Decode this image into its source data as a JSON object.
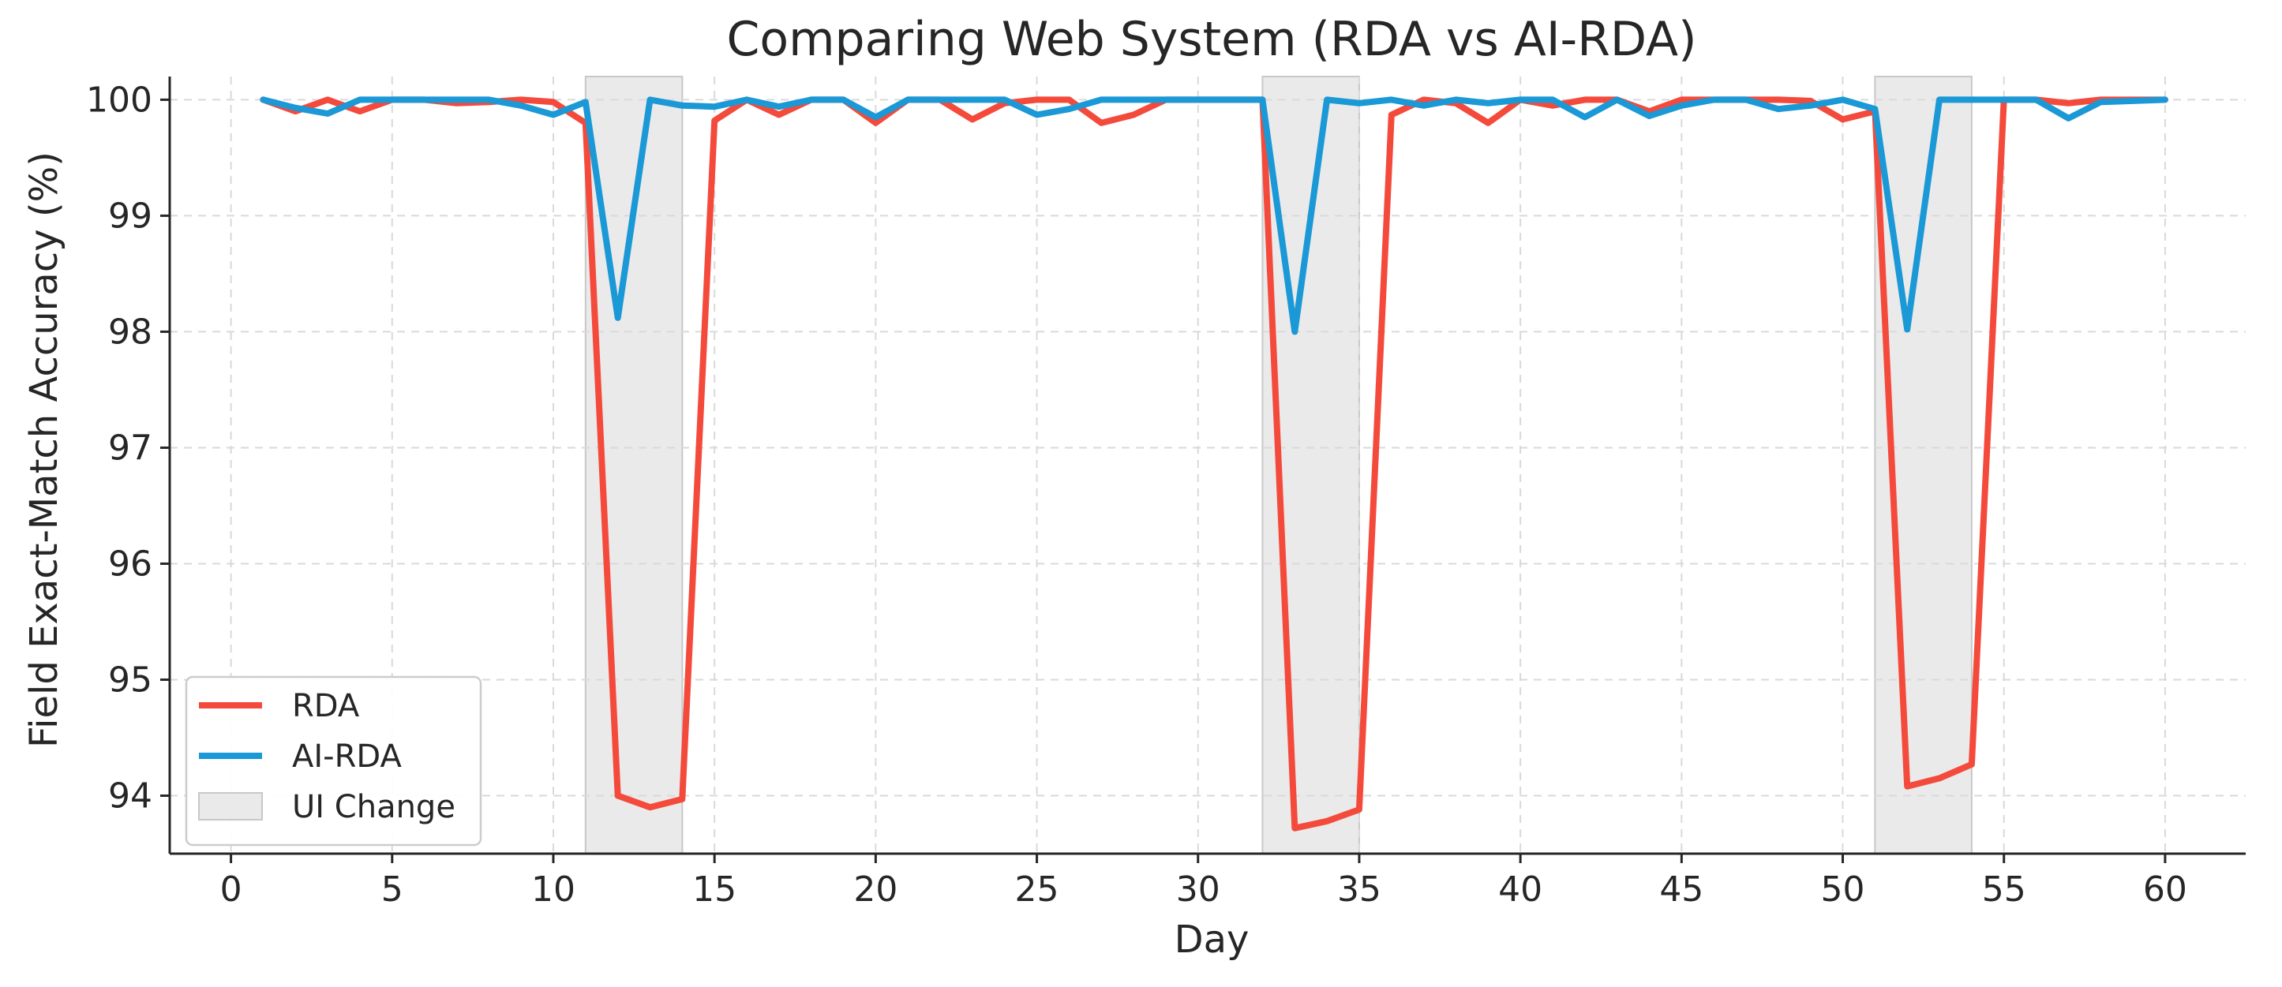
{
  "chart_data": {
    "type": "line",
    "title": "Comparing Web System (RDA vs AI-RDA)",
    "xlabel": "Day",
    "ylabel": "Field Exact-Match Accuracy (%)",
    "xlim": [
      -1.9,
      62.5
    ],
    "ylim": [
      93.5,
      100.2
    ],
    "xticks": [
      0,
      5,
      10,
      15,
      20,
      25,
      30,
      35,
      40,
      45,
      50,
      55,
      60
    ],
    "yticks": [
      94,
      95,
      96,
      97,
      98,
      99,
      100
    ],
    "grid": true,
    "legend_position": "lower-left",
    "x": [
      1,
      2,
      3,
      4,
      5,
      6,
      7,
      8,
      9,
      10,
      11,
      12,
      13,
      14,
      15,
      16,
      17,
      18,
      19,
      20,
      21,
      22,
      23,
      24,
      25,
      26,
      27,
      28,
      29,
      30,
      31,
      32,
      33,
      34,
      35,
      36,
      37,
      38,
      39,
      40,
      41,
      42,
      43,
      44,
      45,
      46,
      47,
      48,
      49,
      50,
      51,
      52,
      53,
      54,
      55,
      56,
      57,
      58,
      59,
      60
    ],
    "series": [
      {
        "name": "RDA",
        "color": "#f44a3c",
        "values": [
          100,
          99.9,
          100,
          99.9,
          100,
          100,
          99.97,
          99.98,
          100,
          99.98,
          99.8,
          94.0,
          93.9,
          93.97,
          99.82,
          100,
          99.87,
          100,
          100,
          99.8,
          100,
          100,
          99.83,
          99.97,
          100,
          100,
          99.8,
          99.87,
          100,
          100,
          100,
          100,
          93.72,
          93.78,
          93.88,
          99.87,
          100,
          99.97,
          99.8,
          100,
          99.95,
          100,
          100,
          99.9,
          100,
          100,
          100,
          100,
          99.99,
          99.83,
          99.9,
          94.08,
          94.15,
          94.27,
          100,
          100,
          99.97,
          100,
          100,
          100
        ]
      },
      {
        "name": "AI-RDA",
        "color": "#1b98d6",
        "values": [
          100,
          99.93,
          99.88,
          100,
          100,
          100,
          100,
          100,
          99.95,
          99.87,
          99.98,
          98.12,
          100,
          99.95,
          99.94,
          100,
          99.94,
          100,
          100,
          99.85,
          100,
          100,
          100,
          100,
          99.87,
          99.92,
          100,
          100,
          100,
          100,
          100,
          100,
          98.0,
          100,
          99.97,
          100,
          99.95,
          100,
          99.97,
          100,
          100,
          99.85,
          100,
          99.86,
          99.95,
          100,
          100,
          99.92,
          99.95,
          100,
          99.92,
          98.02,
          100,
          100,
          100,
          100,
          99.84,
          99.98,
          99.99,
          100
        ]
      }
    ],
    "shaded_regions": [
      {
        "name": "UI Change",
        "x_range": [
          11,
          14
        ],
        "color": "#e3e3e3"
      },
      {
        "name": "UI Change",
        "x_range": [
          32,
          35
        ],
        "color": "#e3e3e3"
      },
      {
        "name": "UI Change",
        "x_range": [
          51,
          54
        ],
        "color": "#e3e3e3"
      }
    ],
    "legend": [
      "RDA",
      "AI-RDA",
      "UI Change"
    ]
  }
}
